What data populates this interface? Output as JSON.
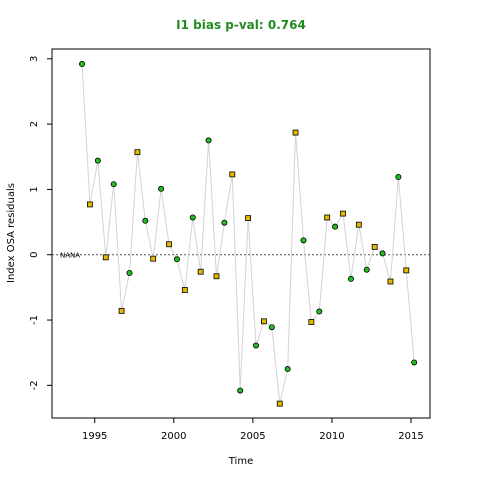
{
  "chart_data": {
    "type": "scatter",
    "title": "I1 bias p-val: 0.764",
    "xlabel": "Time",
    "ylabel": "Index OSA residuals",
    "xlim": [
      1992.3,
      2016.2
    ],
    "ylim": [
      -2.5,
      3.15
    ],
    "x_ticks": [
      1995,
      2000,
      2005,
      2010,
      2015
    ],
    "y_ticks": [
      -2,
      -1,
      0,
      1,
      2,
      3
    ],
    "reference_line": 0,
    "reference_label": "NANA",
    "grid": false,
    "line_color": "#d3d3d3",
    "points": [
      {
        "x": 1994.2,
        "y": 2.92,
        "shape": "circle"
      },
      {
        "x": 1994.7,
        "y": 0.77,
        "shape": "square"
      },
      {
        "x": 1995.2,
        "y": 1.44,
        "shape": "circle"
      },
      {
        "x": 1995.7,
        "y": -0.04,
        "shape": "square"
      },
      {
        "x": 1996.2,
        "y": 1.08,
        "shape": "circle"
      },
      {
        "x": 1996.7,
        "y": -0.86,
        "shape": "square"
      },
      {
        "x": 1997.2,
        "y": -0.28,
        "shape": "circle"
      },
      {
        "x": 1997.7,
        "y": 1.57,
        "shape": "square"
      },
      {
        "x": 1998.2,
        "y": 0.52,
        "shape": "circle"
      },
      {
        "x": 1998.7,
        "y": -0.06,
        "shape": "square"
      },
      {
        "x": 1999.2,
        "y": 1.01,
        "shape": "circle"
      },
      {
        "x": 1999.7,
        "y": 0.16,
        "shape": "square"
      },
      {
        "x": 2000.2,
        "y": -0.07,
        "shape": "circle"
      },
      {
        "x": 2000.7,
        "y": -0.54,
        "shape": "square"
      },
      {
        "x": 2001.2,
        "y": 0.57,
        "shape": "circle"
      },
      {
        "x": 2001.7,
        "y": -0.26,
        "shape": "square"
      },
      {
        "x": 2002.2,
        "y": 1.75,
        "shape": "circle"
      },
      {
        "x": 2002.7,
        "y": -0.33,
        "shape": "square"
      },
      {
        "x": 2003.2,
        "y": 0.49,
        "shape": "circle"
      },
      {
        "x": 2003.7,
        "y": 1.23,
        "shape": "square"
      },
      {
        "x": 2004.2,
        "y": -2.08,
        "shape": "circle"
      },
      {
        "x": 2004.7,
        "y": 0.56,
        "shape": "square"
      },
      {
        "x": 2005.2,
        "y": -1.39,
        "shape": "circle"
      },
      {
        "x": 2005.7,
        "y": -1.02,
        "shape": "square"
      },
      {
        "x": 2006.2,
        "y": -1.11,
        "shape": "circle"
      },
      {
        "x": 2006.7,
        "y": -2.28,
        "shape": "square"
      },
      {
        "x": 2007.2,
        "y": -1.75,
        "shape": "circle"
      },
      {
        "x": 2007.7,
        "y": 1.87,
        "shape": "square"
      },
      {
        "x": 2008.2,
        "y": 0.22,
        "shape": "circle"
      },
      {
        "x": 2008.7,
        "y": -1.03,
        "shape": "square"
      },
      {
        "x": 2009.2,
        "y": -0.87,
        "shape": "circle"
      },
      {
        "x": 2009.7,
        "y": 0.57,
        "shape": "square"
      },
      {
        "x": 2010.2,
        "y": 0.43,
        "shape": "circle"
      },
      {
        "x": 2010.7,
        "y": 0.63,
        "shape": "square"
      },
      {
        "x": 2011.2,
        "y": -0.37,
        "shape": "circle"
      },
      {
        "x": 2011.7,
        "y": 0.46,
        "shape": "square"
      },
      {
        "x": 2012.2,
        "y": -0.23,
        "shape": "circle"
      },
      {
        "x": 2012.7,
        "y": 0.12,
        "shape": "square"
      },
      {
        "x": 2013.2,
        "y": 0.02,
        "shape": "circle"
      },
      {
        "x": 2013.7,
        "y": -0.41,
        "shape": "square"
      },
      {
        "x": 2014.2,
        "y": 1.19,
        "shape": "circle"
      },
      {
        "x": 2014.7,
        "y": -0.24,
        "shape": "square"
      },
      {
        "x": 2015.2,
        "y": -1.65,
        "shape": "circle"
      }
    ],
    "colors": {
      "title": "#228B22",
      "circle_fill": "#1fbf1f",
      "square_fill": "#e6b800",
      "marker_stroke": "#000000",
      "line": "#d3d3d3",
      "reference_line": "#555555"
    }
  }
}
